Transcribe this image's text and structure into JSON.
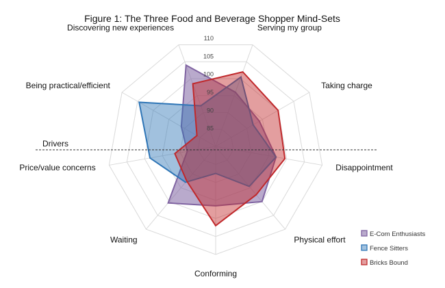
{
  "chart_data": {
    "type": "radar",
    "title": "Figure 1: The Three Food and Beverage Shopper Mind-Sets",
    "axes": [
      "Serving my group",
      "Taking charge",
      "Disappointment",
      "Physical effort",
      "Conforming",
      "Waiting",
      "Price/value concerns",
      "Being practical/efficient",
      "Discovering new experiences"
    ],
    "rlim": [
      80,
      110
    ],
    "ticks": [
      85,
      90,
      95,
      100,
      105,
      110
    ],
    "grid": true,
    "legend_position": "bottom-right",
    "annotation": {
      "label": "Drivers",
      "line_style": "dashed"
    },
    "series": [
      {
        "name": "E-Com Enthusiasts",
        "color": "#8064a2",
        "values": [
          96,
          94,
          97,
          100,
          96.5,
          100.5,
          88,
          91,
          104
        ]
      },
      {
        "name": "Fence Sitters",
        "color": "#2e75b6",
        "values": [
          100.5,
          92,
          97,
          94.5,
          87.5,
          93,
          98.5,
          104.5,
          92
        ]
      },
      {
        "name": "Bricks Bound",
        "color": "#c0282b",
        "values": [
          102,
          100,
          99.5,
          97.5,
          102,
          92.5,
          91.5,
          86,
          98.5
        ]
      }
    ]
  }
}
